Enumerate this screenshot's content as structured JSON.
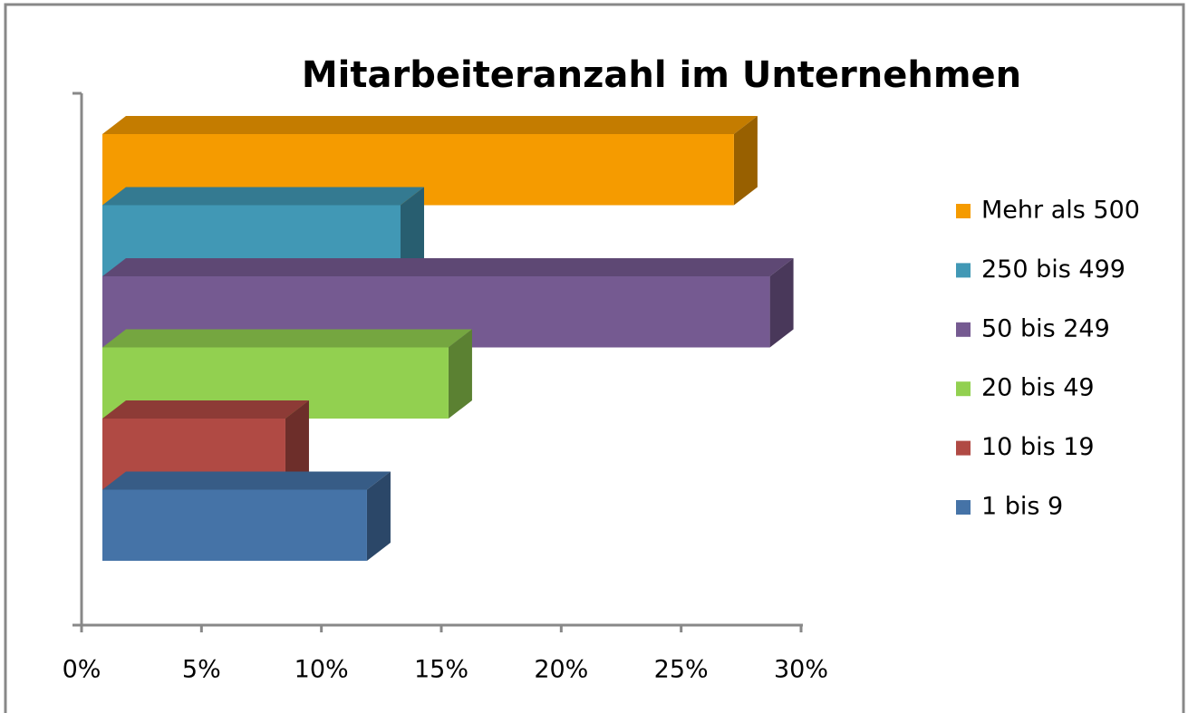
{
  "chart_data": {
    "type": "bar3d-horizontal",
    "title": "Mitarbeiteranzahl im Unternehmen",
    "series": [
      {
        "name": "Mehr als 500",
        "color": "#f59b00",
        "values": [
          27.2
        ]
      },
      {
        "name": "250 bis 499",
        "color": "#4198b5",
        "values": [
          13.3
        ]
      },
      {
        "name": "50 bis 249",
        "color": "#755a91",
        "values": [
          28.7
        ]
      },
      {
        "name": "20 bis 49",
        "color": "#92d050",
        "values": [
          15.3
        ]
      },
      {
        "name": "10 bis 19",
        "color": "#b04a44",
        "values": [
          8.5
        ]
      },
      {
        "name": "1 bis 9",
        "color": "#4573a7",
        "values": [
          11.9
        ]
      }
    ],
    "xlim": [
      0,
      30
    ],
    "xticks": [
      {
        "value": 0,
        "label": "0%"
      },
      {
        "value": 5,
        "label": "5%"
      },
      {
        "value": 10,
        "label": "10%"
      },
      {
        "value": 15,
        "label": "15%"
      },
      {
        "value": 20,
        "label": "20%"
      },
      {
        "value": 25,
        "label": "25%"
      },
      {
        "value": 30,
        "label": "30%"
      }
    ],
    "legend": "right"
  }
}
